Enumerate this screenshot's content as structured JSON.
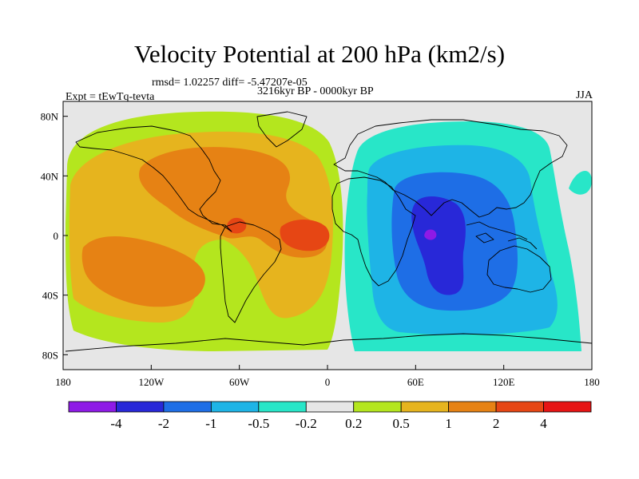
{
  "figure": {
    "title": "Velocity Potential at 200 hPa (km2/s)",
    "stats": "rmsd= 1.02257  diff= -5.47207e-05",
    "period": "3216kyr BP - 0000kyr BP",
    "experiment": "Expt = tEwTq-tevta",
    "season": "JJA"
  },
  "map": {
    "projection": "cylindrical equidistant",
    "lon_range": [
      -180,
      180
    ],
    "lat_range": [
      -90,
      90
    ],
    "land_outline_color": "#000000",
    "missing_color": "#e6e6e6",
    "x_ticks": [
      {
        "lon": -180,
        "label": "180"
      },
      {
        "lon": -120,
        "label": "120W"
      },
      {
        "lon": -60,
        "label": "60W"
      },
      {
        "lon": 0,
        "label": "0"
      },
      {
        "lon": 60,
        "label": "60E"
      },
      {
        "lon": 120,
        "label": "120E"
      },
      {
        "lon": 180,
        "label": "180"
      }
    ],
    "y_ticks": [
      {
        "lat": 80,
        "label": "80N"
      },
      {
        "lat": 40,
        "label": "40N"
      },
      {
        "lat": 0,
        "label": "0"
      },
      {
        "lat": -40,
        "label": "40S"
      },
      {
        "lat": -80,
        "label": "80S"
      }
    ]
  },
  "chart_data": {
    "type": "heatmap",
    "variable": "velocity potential difference at 200 hPa",
    "units": "km2/s",
    "levels": [
      -4,
      -2,
      -1,
      -0.5,
      -0.2,
      0.2,
      0.5,
      1,
      2,
      4
    ],
    "level_labels": [
      "-4",
      "-2",
      "-1",
      "-0.5",
      "-0.2",
      "0.2",
      "0.5",
      "1",
      "2",
      "4"
    ],
    "colors": [
      "#8e1ae6",
      "#2828d8",
      "#1e6ee6",
      "#1eb4e6",
      "#28e6c8",
      "#e6e6e6",
      "#b4e61e",
      "#e6b41e",
      "#e68214",
      "#e64614",
      "#e61414"
    ],
    "regions": [
      {
        "name": "positive background (Americas and Pacific)",
        "value": 0.3
      },
      {
        "name": "positive band Americas",
        "value": 0.7
      },
      {
        "name": "South Pacific maximum",
        "value": 1.3
      },
      {
        "name": "North Atlantic and North America maximum",
        "value": 1.3
      },
      {
        "name": "Caribbean maximum",
        "value": 2.4
      },
      {
        "name": "tropical Atlantic maximum",
        "value": 2.4
      },
      {
        "name": "negative background (Africa, Eurasia, Australia)",
        "value": -0.35
      },
      {
        "name": "negative band Eastern Hemisphere",
        "value": -0.7
      },
      {
        "name": "Indian Ocean minimum",
        "value": -1.5
      },
      {
        "name": "Indian Ocean core",
        "value": -2.5
      },
      {
        "name": "Indian Ocean peak",
        "value": -4.5
      }
    ]
  }
}
